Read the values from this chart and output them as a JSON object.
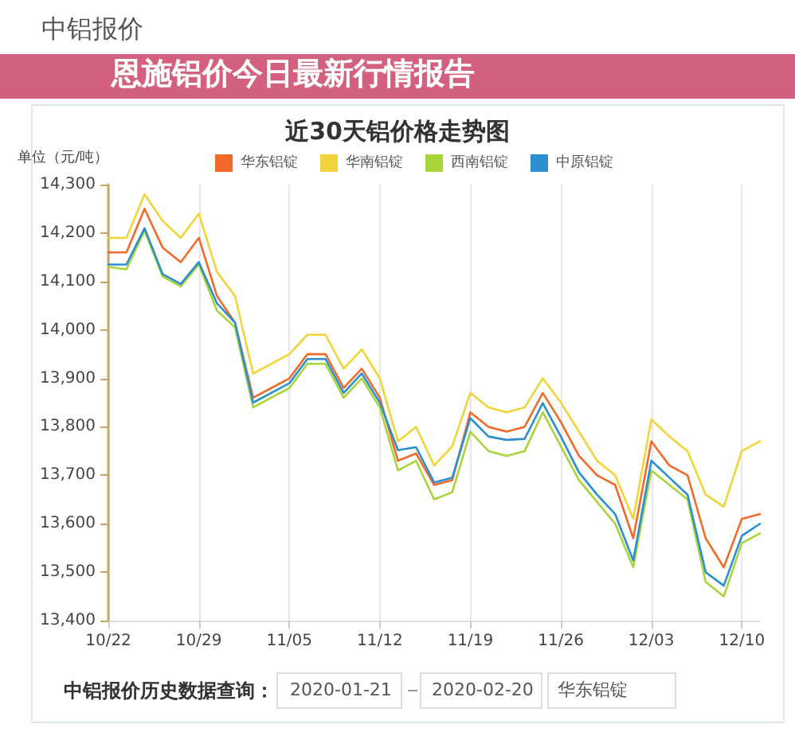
{
  "chart_data": {
    "type": "line",
    "title": "近30天铝价格走势图",
    "ylabel": "单位（元/吨）",
    "annotations": [
      "中铝报价",
      "恩施铝价今日最新行情报告",
      "中铝报价历史数据查询：",
      "2020-01-21",
      "2020-02-20",
      "华东铝锭"
    ],
    "categories": [
      "10/22",
      null,
      null,
      null,
      null,
      "10/29",
      null,
      null,
      null,
      null,
      "11/05",
      null,
      null,
      null,
      null,
      "11/12",
      null,
      null,
      null,
      null,
      "11/19",
      null,
      null,
      null,
      null,
      "11/26",
      null,
      null,
      null,
      null,
      "12/03",
      null,
      null,
      null,
      null,
      "12/10",
      null
    ],
    "series": [
      {
        "name": "华东铝锭",
        "color": "#f26a2a",
        "values": [
          14160,
          14160,
          14250,
          14170,
          14140,
          14190,
          14070,
          14015,
          13860,
          13880,
          13900,
          13950,
          13950,
          13880,
          13920,
          13860,
          13730,
          13745,
          13680,
          13690,
          13830,
          13800,
          13790,
          13800,
          13870,
          13810,
          13740,
          13700,
          13680,
          13570,
          13770,
          13720,
          13700,
          13570,
          13510,
          13610,
          13620
        ]
      },
      {
        "name": "华南铝锭",
        "color": "#f2d33a",
        "values": [
          14190,
          14190,
          14280,
          14225,
          14190,
          14240,
          14120,
          14070,
          13910,
          13930,
          13950,
          13990,
          13990,
          13920,
          13960,
          13900,
          13770,
          13800,
          13720,
          13760,
          13870,
          13840,
          13830,
          13840,
          13900,
          13850,
          13790,
          13730,
          13700,
          13610,
          13815,
          13780,
          13750,
          13660,
          13635,
          13750,
          13770
        ]
      },
      {
        "name": "西南铝锭",
        "color": "#a9d43a",
        "values": [
          14130,
          14125,
          14205,
          14110,
          14090,
          14135,
          14040,
          14005,
          13840,
          13860,
          13880,
          13930,
          13930,
          13860,
          13900,
          13840,
          13710,
          13730,
          13650,
          13665,
          13790,
          13750,
          13740,
          13750,
          13830,
          13760,
          13690,
          13645,
          13600,
          13510,
          13710,
          13680,
          13650,
          13480,
          13450,
          13560,
          13580
        ]
      },
      {
        "name": "中原铝锭",
        "color": "#2b8fd0",
        "values": [
          14135,
          14135,
          14210,
          14115,
          14095,
          14140,
          14055,
          14015,
          13850,
          13870,
          13890,
          13940,
          13940,
          13870,
          13910,
          13850,
          13752,
          13758,
          13685,
          13695,
          13818,
          13780,
          13773,
          13775,
          13849,
          13780,
          13706,
          13660,
          13620,
          13524,
          13730,
          13695,
          13660,
          13500,
          13472,
          13575,
          13600
        ]
      }
    ],
    "ylim": [
      13400,
      14300
    ],
    "yticks": [
      {
        "value": 13400,
        "label": "13,400"
      },
      {
        "value": 13500,
        "label": "13,500"
      },
      {
        "value": 13600,
        "label": "13,600"
      },
      {
        "value": 13700,
        "label": "13,700"
      },
      {
        "value": 13800,
        "label": "13,800"
      },
      {
        "value": 13900,
        "label": "13,900"
      },
      {
        "value": 14000,
        "label": "14,000"
      },
      {
        "value": 14100,
        "label": "14,100"
      },
      {
        "value": 14200,
        "label": "14,200"
      },
      {
        "value": 14300,
        "label": "14,300"
      }
    ],
    "grid": "x",
    "legend": "top",
    "marker": "none",
    "line_style": "solid"
  }
}
